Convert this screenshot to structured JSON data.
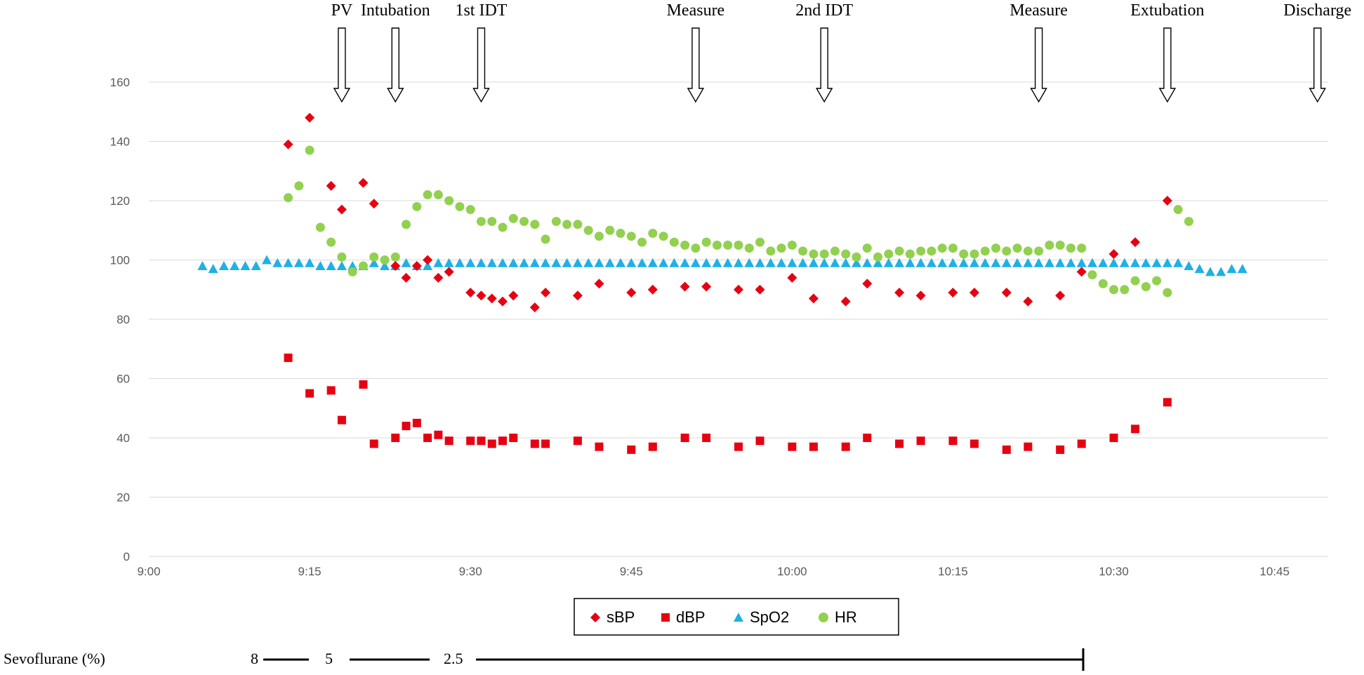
{
  "chart_data": {
    "type": "scatter",
    "x_axis": {
      "range": [
        "9:00",
        "10:50"
      ],
      "ticks": [
        "9:00",
        "9:15",
        "9:30",
        "9:45",
        "10:00",
        "10:15",
        "10:30",
        "10:45"
      ]
    },
    "y_axis": {
      "range": [
        0,
        160
      ],
      "ticks": [
        "0",
        "20",
        "40",
        "60",
        "80",
        "100",
        "120",
        "140",
        "160"
      ]
    },
    "grid": "horizontal",
    "legend_position": "bottom",
    "colors": {
      "sBP": "#e60012",
      "dBP": "#e60012",
      "SpO2": "#1fb0e6",
      "HR": "#92d050"
    },
    "series": [
      {
        "name": "sBP",
        "marker": "diamond",
        "points": [
          [
            "9:13",
            139
          ],
          [
            "9:15",
            148
          ],
          [
            "9:17",
            125
          ],
          [
            "9:18",
            117
          ],
          [
            "9:20",
            126
          ],
          [
            "9:21",
            119
          ],
          [
            "9:23",
            98
          ],
          [
            "9:24",
            94
          ],
          [
            "9:25",
            98
          ],
          [
            "9:26",
            100
          ],
          [
            "9:27",
            94
          ],
          [
            "9:28",
            96
          ],
          [
            "9:30",
            89
          ],
          [
            "9:31",
            88
          ],
          [
            "9:32",
            87
          ],
          [
            "9:33",
            86
          ],
          [
            "9:34",
            88
          ],
          [
            "9:36",
            84
          ],
          [
            "9:37",
            89
          ],
          [
            "9:40",
            88
          ],
          [
            "9:42",
            92
          ],
          [
            "9:45",
            89
          ],
          [
            "9:47",
            90
          ],
          [
            "9:50",
            91
          ],
          [
            "9:52",
            91
          ],
          [
            "9:55",
            90
          ],
          [
            "9:57",
            90
          ],
          [
            "10:00",
            94
          ],
          [
            "10:02",
            87
          ],
          [
            "10:05",
            86
          ],
          [
            "10:07",
            92
          ],
          [
            "10:10",
            89
          ],
          [
            "10:12",
            88
          ],
          [
            "10:15",
            89
          ],
          [
            "10:17",
            89
          ],
          [
            "10:20",
            89
          ],
          [
            "10:22",
            86
          ],
          [
            "10:25",
            88
          ],
          [
            "10:27",
            96
          ],
          [
            "10:30",
            102
          ],
          [
            "10:32",
            106
          ],
          [
            "10:35",
            120
          ]
        ]
      },
      {
        "name": "dBP",
        "marker": "square",
        "points": [
          [
            "9:13",
            67
          ],
          [
            "9:15",
            55
          ],
          [
            "9:17",
            56
          ],
          [
            "9:18",
            46
          ],
          [
            "9:20",
            58
          ],
          [
            "9:21",
            38
          ],
          [
            "9:23",
            40
          ],
          [
            "9:24",
            44
          ],
          [
            "9:25",
            45
          ],
          [
            "9:26",
            40
          ],
          [
            "9:27",
            41
          ],
          [
            "9:28",
            39
          ],
          [
            "9:30",
            39
          ],
          [
            "9:31",
            39
          ],
          [
            "9:32",
            38
          ],
          [
            "9:33",
            39
          ],
          [
            "9:34",
            40
          ],
          [
            "9:36",
            38
          ],
          [
            "9:37",
            38
          ],
          [
            "9:40",
            39
          ],
          [
            "9:42",
            37
          ],
          [
            "9:45",
            36
          ],
          [
            "9:47",
            37
          ],
          [
            "9:50",
            40
          ],
          [
            "9:52",
            40
          ],
          [
            "9:55",
            37
          ],
          [
            "9:57",
            39
          ],
          [
            "10:00",
            37
          ],
          [
            "10:02",
            37
          ],
          [
            "10:05",
            37
          ],
          [
            "10:07",
            40
          ],
          [
            "10:10",
            38
          ],
          [
            "10:12",
            39
          ],
          [
            "10:15",
            39
          ],
          [
            "10:17",
            38
          ],
          [
            "10:20",
            36
          ],
          [
            "10:22",
            37
          ],
          [
            "10:25",
            36
          ],
          [
            "10:27",
            38
          ],
          [
            "10:30",
            40
          ],
          [
            "10:32",
            43
          ],
          [
            "10:35",
            52
          ]
        ]
      },
      {
        "name": "SpO2",
        "marker": "triangle",
        "points": [
          [
            "9:05",
            98
          ],
          [
            "9:06",
            97
          ],
          [
            "9:07",
            98
          ],
          [
            "9:08",
            98
          ],
          [
            "9:09",
            98
          ],
          [
            "9:10",
            98
          ],
          [
            "9:11",
            100
          ],
          [
            "9:12",
            99
          ],
          [
            "9:13",
            99
          ],
          [
            "9:14",
            99
          ],
          [
            "9:15",
            99
          ],
          [
            "9:16",
            98
          ],
          [
            "9:17",
            98
          ],
          [
            "9:18",
            98
          ],
          [
            "9:19",
            98
          ],
          [
            "9:20",
            98
          ],
          [
            "9:21",
            99
          ],
          [
            "9:22",
            98
          ],
          [
            "9:23",
            98
          ],
          [
            "9:24",
            99
          ],
          [
            "9:25",
            98
          ],
          [
            "9:26",
            98
          ],
          [
            "9:27",
            99
          ],
          [
            "9:28",
            99
          ],
          [
            "9:29",
            99
          ],
          [
            "9:30",
            99
          ],
          [
            "9:31",
            99
          ],
          [
            "9:32",
            99
          ],
          [
            "9:33",
            99
          ],
          [
            "9:34",
            99
          ],
          [
            "9:35",
            99
          ],
          [
            "9:36",
            99
          ],
          [
            "9:37",
            99
          ],
          [
            "9:38",
            99
          ],
          [
            "9:39",
            99
          ],
          [
            "9:40",
            99
          ],
          [
            "9:41",
            99
          ],
          [
            "9:42",
            99
          ],
          [
            "9:43",
            99
          ],
          [
            "9:44",
            99
          ],
          [
            "9:45",
            99
          ],
          [
            "9:46",
            99
          ],
          [
            "9:47",
            99
          ],
          [
            "9:48",
            99
          ],
          [
            "9:49",
            99
          ],
          [
            "9:50",
            99
          ],
          [
            "9:51",
            99
          ],
          [
            "9:52",
            99
          ],
          [
            "9:53",
            99
          ],
          [
            "9:54",
            99
          ],
          [
            "9:55",
            99
          ],
          [
            "9:56",
            99
          ],
          [
            "9:57",
            99
          ],
          [
            "9:58",
            99
          ],
          [
            "9:59",
            99
          ],
          [
            "10:00",
            99
          ],
          [
            "10:01",
            99
          ],
          [
            "10:02",
            99
          ],
          [
            "10:03",
            99
          ],
          [
            "10:04",
            99
          ],
          [
            "10:05",
            99
          ],
          [
            "10:06",
            99
          ],
          [
            "10:07",
            99
          ],
          [
            "10:08",
            99
          ],
          [
            "10:09",
            99
          ],
          [
            "10:10",
            99
          ],
          [
            "10:11",
            99
          ],
          [
            "10:12",
            99
          ],
          [
            "10:13",
            99
          ],
          [
            "10:14",
            99
          ],
          [
            "10:15",
            99
          ],
          [
            "10:16",
            99
          ],
          [
            "10:17",
            99
          ],
          [
            "10:18",
            99
          ],
          [
            "10:19",
            99
          ],
          [
            "10:20",
            99
          ],
          [
            "10:21",
            99
          ],
          [
            "10:22",
            99
          ],
          [
            "10:23",
            99
          ],
          [
            "10:24",
            99
          ],
          [
            "10:25",
            99
          ],
          [
            "10:26",
            99
          ],
          [
            "10:27",
            99
          ],
          [
            "10:28",
            99
          ],
          [
            "10:29",
            99
          ],
          [
            "10:30",
            99
          ],
          [
            "10:31",
            99
          ],
          [
            "10:32",
            99
          ],
          [
            "10:33",
            99
          ],
          [
            "10:34",
            99
          ],
          [
            "10:35",
            99
          ],
          [
            "10:36",
            99
          ],
          [
            "10:37",
            98
          ],
          [
            "10:38",
            97
          ],
          [
            "10:39",
            96
          ],
          [
            "10:40",
            96
          ],
          [
            "10:41",
            97
          ],
          [
            "10:42",
            97
          ]
        ]
      },
      {
        "name": "HR",
        "marker": "circle",
        "points": [
          [
            "9:13",
            121
          ],
          [
            "9:14",
            125
          ],
          [
            "9:15",
            137
          ],
          [
            "9:16",
            111
          ],
          [
            "9:17",
            106
          ],
          [
            "9:18",
            101
          ],
          [
            "9:19",
            96
          ],
          [
            "9:20",
            98
          ],
          [
            "9:21",
            101
          ],
          [
            "9:22",
            100
          ],
          [
            "9:23",
            101
          ],
          [
            "9:24",
            112
          ],
          [
            "9:25",
            118
          ],
          [
            "9:26",
            122
          ],
          [
            "9:27",
            122
          ],
          [
            "9:28",
            120
          ],
          [
            "9:29",
            118
          ],
          [
            "9:30",
            117
          ],
          [
            "9:31",
            113
          ],
          [
            "9:32",
            113
          ],
          [
            "9:33",
            111
          ],
          [
            "9:34",
            114
          ],
          [
            "9:35",
            113
          ],
          [
            "9:36",
            112
          ],
          [
            "9:37",
            107
          ],
          [
            "9:38",
            113
          ],
          [
            "9:39",
            112
          ],
          [
            "9:40",
            112
          ],
          [
            "9:41",
            110
          ],
          [
            "9:42",
            108
          ],
          [
            "9:43",
            110
          ],
          [
            "9:44",
            109
          ],
          [
            "9:45",
            108
          ],
          [
            "9:46",
            106
          ],
          [
            "9:47",
            109
          ],
          [
            "9:48",
            108
          ],
          [
            "9:49",
            106
          ],
          [
            "9:50",
            105
          ],
          [
            "9:51",
            104
          ],
          [
            "9:52",
            106
          ],
          [
            "9:53",
            105
          ],
          [
            "9:54",
            105
          ],
          [
            "9:55",
            105
          ],
          [
            "9:56",
            104
          ],
          [
            "9:57",
            106
          ],
          [
            "9:58",
            103
          ],
          [
            "9:59",
            104
          ],
          [
            "10:00",
            105
          ],
          [
            "10:01",
            103
          ],
          [
            "10:02",
            102
          ],
          [
            "10:03",
            102
          ],
          [
            "10:04",
            103
          ],
          [
            "10:05",
            102
          ],
          [
            "10:06",
            101
          ],
          [
            "10:07",
            104
          ],
          [
            "10:08",
            101
          ],
          [
            "10:09",
            102
          ],
          [
            "10:10",
            103
          ],
          [
            "10:11",
            102
          ],
          [
            "10:12",
            103
          ],
          [
            "10:13",
            103
          ],
          [
            "10:14",
            104
          ],
          [
            "10:15",
            104
          ],
          [
            "10:16",
            102
          ],
          [
            "10:17",
            102
          ],
          [
            "10:18",
            103
          ],
          [
            "10:19",
            104
          ],
          [
            "10:20",
            103
          ],
          [
            "10:21",
            104
          ],
          [
            "10:22",
            103
          ],
          [
            "10:23",
            103
          ],
          [
            "10:24",
            105
          ],
          [
            "10:25",
            105
          ],
          [
            "10:26",
            104
          ],
          [
            "10:27",
            104
          ],
          [
            "10:28",
            95
          ],
          [
            "10:29",
            92
          ],
          [
            "10:30",
            90
          ],
          [
            "10:31",
            90
          ],
          [
            "10:32",
            93
          ],
          [
            "10:33",
            91
          ],
          [
            "10:34",
            93
          ],
          [
            "10:35",
            89
          ],
          [
            "10:36",
            117
          ],
          [
            "10:37",
            113
          ]
        ]
      }
    ],
    "events": [
      {
        "label": "PV",
        "time": "9:18"
      },
      {
        "label": "Intubation",
        "time": "9:23"
      },
      {
        "label": "1st IDT",
        "time": "9:31"
      },
      {
        "label": "Measure",
        "time": "9:51"
      },
      {
        "label": "2nd IDT",
        "time": "10:03"
      },
      {
        "label": "Measure",
        "time": "10:23"
      },
      {
        "label": "Extubation",
        "time": "10:35"
      },
      {
        "label": "Discharge",
        "time": "10:49"
      }
    ],
    "legend": [
      "sBP",
      "dBP",
      "SpO2",
      "HR"
    ]
  },
  "sevoflurane": {
    "label": "Sevoflurane (%)",
    "levels": [
      "8",
      "5",
      "2.5"
    ]
  }
}
